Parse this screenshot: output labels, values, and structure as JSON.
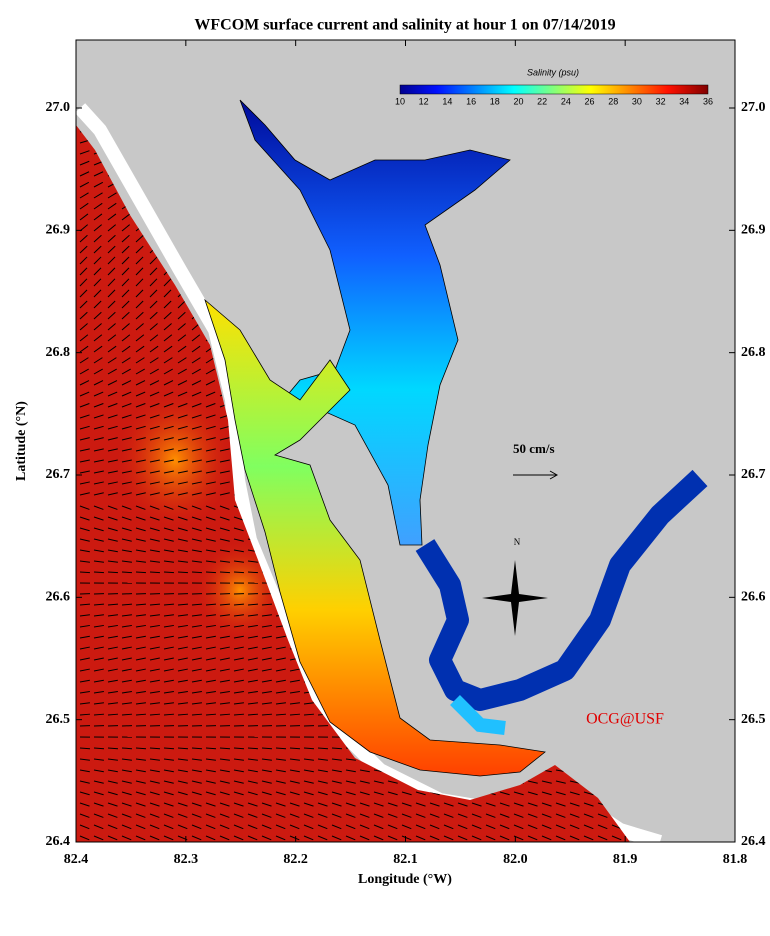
{
  "map": {
    "title": "WFCOM surface current and salinity at hour 1 on 07/14/2019",
    "x_label": "Longitude (°W)",
    "y_label": "Latitude (°N)",
    "x_ticks": [
      "82.4",
      "82.3",
      "82.2",
      "82.1",
      "82.0",
      "81.9",
      "81.8"
    ],
    "y_ticks": [
      "27.0",
      "26.9",
      "26.8",
      "26.7",
      "26.6",
      "26.5",
      "26.4"
    ],
    "colorbar": {
      "title": "Salinity (psu)",
      "ticks": [
        "10",
        "12",
        "14",
        "16",
        "18",
        "20",
        "22",
        "24",
        "26",
        "28",
        "30",
        "32",
        "34",
        "36"
      ]
    },
    "scale_label": "50 cm/s",
    "north_label": "N",
    "credit": "OCG@USF"
  }
}
